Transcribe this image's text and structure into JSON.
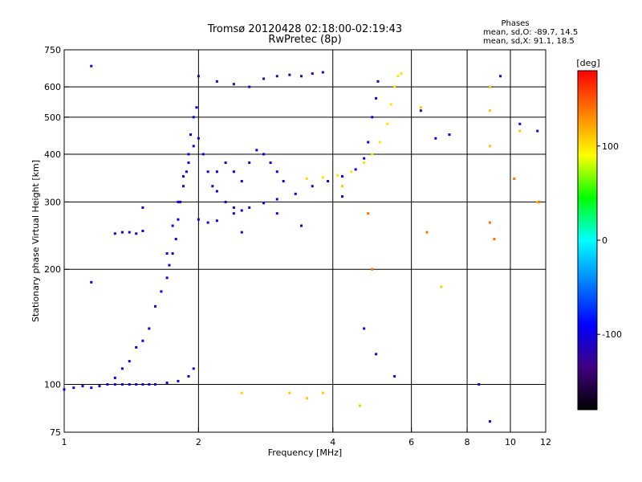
{
  "chart_data": {
    "type": "scatter",
    "title": "Tromsø 20120428 02:18:00-02:19:43",
    "subtitle": "RwPretec (8p)",
    "xlabel": "Frequency [MHz]",
    "ylabel": "Stationary phase Virtual Height [km]",
    "x_scale": "log",
    "y_scale": "log",
    "xlim": [
      1,
      12
    ],
    "ylim": [
      75,
      750
    ],
    "x_ticks": [
      1,
      2,
      4,
      6,
      8,
      10,
      12
    ],
    "x_tick_labels": [
      "1",
      "2",
      "4",
      "6",
      "8",
      "10",
      "12"
    ],
    "y_ticks": [
      75,
      100,
      200,
      300,
      400,
      500,
      600,
      750
    ],
    "y_tick_labels": [
      "75",
      "100",
      "200",
      "300",
      "400",
      "500",
      "600",
      "750"
    ],
    "grid": true,
    "legend": {
      "title": "Phases",
      "lines": [
        "mean, sd,O: -89.7, 14.5",
        "mean, sd,X:  91.1, 18.5"
      ],
      "placement": "top-right"
    },
    "colorbar": {
      "label": "[deg]",
      "ticks": [
        100,
        0,
        -100
      ],
      "tick_labels": [
        "100",
        "0",
        "-100"
      ],
      "range": [
        -180,
        180
      ],
      "colors": [
        "#ff0000",
        "#ff8000",
        "#ffff00",
        "#00ff00",
        "#00ffff",
        "#0080ff",
        "#0000ff",
        "#400080",
        "#000000"
      ]
    },
    "traces": [
      {
        "name": "",
        "phase": -100,
        "points": [
          [
            1.0,
            97
          ],
          [
            1.05,
            98
          ],
          [
            1.1,
            99
          ],
          [
            1.15,
            98
          ],
          [
            1.2,
            99
          ],
          [
            1.25,
            100
          ],
          [
            1.3,
            100
          ],
          [
            1.35,
            100
          ],
          [
            1.4,
            100
          ],
          [
            1.45,
            100
          ],
          [
            1.5,
            100
          ],
          [
            1.55,
            100
          ],
          [
            1.6,
            100
          ],
          [
            1.7,
            101
          ],
          [
            1.8,
            102
          ],
          [
            1.9,
            105
          ],
          [
            1.95,
            110
          ]
        ]
      },
      {
        "name": "",
        "phase": -100,
        "points": [
          [
            1.3,
            104
          ],
          [
            1.35,
            110
          ],
          [
            1.4,
            115
          ],
          [
            1.45,
            125
          ],
          [
            1.5,
            130
          ],
          [
            1.55,
            140
          ],
          [
            1.6,
            160
          ],
          [
            1.65,
            175
          ],
          [
            1.7,
            190
          ],
          [
            1.72,
            205
          ],
          [
            1.75,
            220
          ],
          [
            1.78,
            240
          ],
          [
            1.8,
            270
          ],
          [
            1.82,
            300
          ],
          [
            1.85,
            330
          ],
          [
            1.88,
            360
          ],
          [
            1.9,
            400
          ],
          [
            1.92,
            450
          ],
          [
            1.95,
            500
          ],
          [
            1.98,
            530
          ]
        ]
      },
      {
        "name": "",
        "phase": -100,
        "points": [
          [
            1.7,
            220
          ],
          [
            1.75,
            260
          ],
          [
            1.8,
            300
          ],
          [
            1.85,
            350
          ],
          [
            1.9,
            380
          ],
          [
            1.95,
            420
          ],
          [
            2.0,
            440
          ],
          [
            2.05,
            400
          ],
          [
            2.1,
            360
          ],
          [
            2.15,
            330
          ],
          [
            2.2,
            320
          ],
          [
            2.3,
            300
          ],
          [
            2.4,
            290
          ],
          [
            2.5,
            285
          ]
        ]
      },
      {
        "name": "",
        "phase": -100,
        "points": [
          [
            2.0,
            270
          ],
          [
            2.1,
            265
          ],
          [
            2.2,
            268
          ],
          [
            2.4,
            280
          ],
          [
            2.6,
            290
          ],
          [
            2.8,
            298
          ],
          [
            3.0,
            305
          ],
          [
            3.3,
            315
          ],
          [
            3.6,
            330
          ],
          [
            3.9,
            340
          ],
          [
            4.2,
            350
          ],
          [
            4.5,
            365
          ],
          [
            4.7,
            390
          ],
          [
            4.8,
            430
          ],
          [
            4.9,
            500
          ],
          [
            5.0,
            560
          ],
          [
            5.05,
            620
          ]
        ]
      },
      {
        "name": "",
        "phase": -100,
        "points": [
          [
            2.2,
            360
          ],
          [
            2.3,
            380
          ],
          [
            2.4,
            360
          ],
          [
            2.5,
            340
          ],
          [
            2.6,
            380
          ],
          [
            2.7,
            410
          ],
          [
            2.8,
            400
          ],
          [
            2.9,
            380
          ],
          [
            3.0,
            360
          ],
          [
            3.1,
            340
          ]
        ]
      },
      {
        "name": "",
        "phase": -100,
        "points": [
          [
            1.3,
            248
          ],
          [
            1.35,
            250
          ],
          [
            1.4,
            250
          ],
          [
            1.45,
            248
          ],
          [
            1.5,
            252
          ]
        ]
      },
      {
        "name": "",
        "phase": -120,
        "points": [
          [
            2.0,
            640
          ],
          [
            2.2,
            620
          ],
          [
            2.4,
            610
          ],
          [
            2.6,
            600
          ],
          [
            2.8,
            630
          ],
          [
            3.0,
            640
          ],
          [
            3.2,
            645
          ],
          [
            3.4,
            640
          ],
          [
            3.6,
            650
          ],
          [
            3.8,
            655
          ]
        ]
      },
      {
        "name": "",
        "phase": 100,
        "points": [
          [
            3.5,
            345
          ],
          [
            3.8,
            348
          ],
          [
            4.1,
            352
          ],
          [
            4.4,
            360
          ],
          [
            4.7,
            380
          ],
          [
            4.9,
            400
          ],
          [
            5.1,
            430
          ],
          [
            5.3,
            480
          ],
          [
            5.4,
            540
          ],
          [
            5.5,
            600
          ],
          [
            5.6,
            640
          ],
          [
            5.7,
            650
          ]
        ]
      },
      {
        "name": "",
        "phase": -110,
        "points": [
          [
            1.15,
            680
          ],
          [
            1.5,
            290
          ],
          [
            1.15,
            185
          ],
          [
            2.5,
            250
          ],
          [
            3.0,
            280
          ],
          [
            3.4,
            260
          ],
          [
            4.2,
            310
          ],
          [
            4.7,
            140
          ],
          [
            5.0,
            120
          ],
          [
            5.5,
            105
          ],
          [
            6.3,
            520
          ],
          [
            6.8,
            440
          ],
          [
            7.3,
            450
          ],
          [
            8.5,
            100
          ],
          [
            9.0,
            80
          ],
          [
            9.5,
            640
          ],
          [
            10.5,
            480
          ],
          [
            11.5,
            460
          ]
        ]
      },
      {
        "name": "",
        "phase": 110,
        "points": [
          [
            2.5,
            95
          ],
          [
            3.2,
            95
          ],
          [
            3.5,
            92
          ],
          [
            3.8,
            95
          ],
          [
            4.2,
            330
          ],
          [
            4.6,
            88
          ],
          [
            9.0,
            420
          ],
          [
            9.0,
            520
          ],
          [
            9.0,
            600
          ],
          [
            10.5,
            460
          ],
          [
            11.5,
            300
          ],
          [
            6.3,
            530
          ],
          [
            7.0,
            180
          ]
        ]
      },
      {
        "name": "",
        "phase": 140,
        "points": [
          [
            4.8,
            280
          ],
          [
            4.9,
            200
          ],
          [
            6.5,
            250
          ],
          [
            9.2,
            240
          ],
          [
            9.0,
            265
          ],
          [
            11.6,
            300
          ],
          [
            10.2,
            345
          ]
        ]
      }
    ]
  }
}
